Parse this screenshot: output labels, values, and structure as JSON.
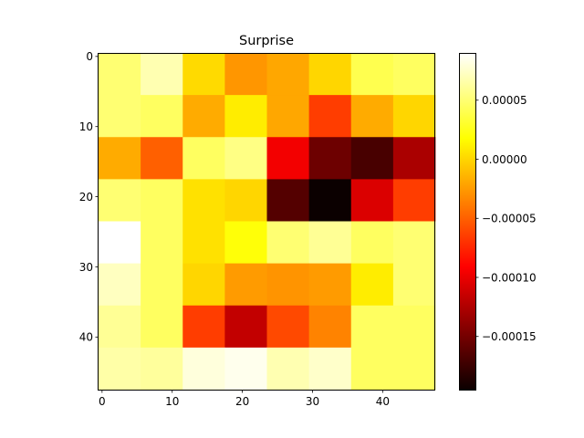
{
  "chart_data": {
    "type": "heatmap",
    "title": "Surprise",
    "colormap": "hot",
    "xlabel": "",
    "ylabel": "",
    "x_range": [
      -0.5,
      47.5
    ],
    "y_range": [
      47.5,
      -0.5
    ],
    "x_ticks": [
      0,
      10,
      20,
      30,
      40
    ],
    "y_ticks": [
      0,
      10,
      20,
      30,
      40
    ],
    "x_tick_labels": [
      "0",
      "10",
      "20",
      "30",
      "40"
    ],
    "y_tick_labels": [
      "0",
      "10",
      "20",
      "30",
      "40"
    ],
    "block_size": 6,
    "vmin": -0.000195,
    "vmax": 9e-05,
    "colorbar_ticks": [
      5e-05,
      0.0,
      -5e-05,
      -0.0001,
      -0.00015
    ],
    "colorbar_tick_labels": [
      "0.00005",
      "0.00000",
      "−0.00005",
      "−0.00010",
      "−0.00015"
    ],
    "values": [
      [
        5e-05,
        6.8e-05,
        2e-06,
        -2.7e-05,
        -2e-05,
        0.0,
        4e-05,
        4.5e-05
      ],
      [
        5e-05,
        4.5e-05,
        -1.8e-05,
        1e-05,
        -2e-05,
        -6.5e-05,
        -1.8e-05,
        0.0
      ],
      [
        -1.8e-05,
        -5e-05,
        4.5e-05,
        5.5e-05,
        -0.0001,
        -0.000155,
        -0.00017,
        -0.00013
      ],
      [
        5e-05,
        4.5e-05,
        5e-06,
        0.0,
        -0.000165,
        -0.000195,
        -0.00011,
        -6.5e-05
      ],
      [
        9e-05,
        4.5e-05,
        5e-06,
        2e-05,
        5e-05,
        6e-05,
        4.5e-05,
        5e-05
      ],
      [
        7.2e-05,
        4.5e-05,
        0.0,
        -2.5e-05,
        -2.8e-05,
        -2.5e-05,
        1e-05,
        5e-05
      ],
      [
        6e-05,
        4.5e-05,
        -6.5e-05,
        -0.00012,
        -6e-05,
        -3.5e-05,
        4.5e-05,
        4.5e-05
      ],
      [
        6.5e-05,
        6.2e-05,
        8e-05,
        8.5e-05,
        6.8e-05,
        7.5e-05,
        4.5e-05,
        4.5e-05
      ]
    ]
  }
}
